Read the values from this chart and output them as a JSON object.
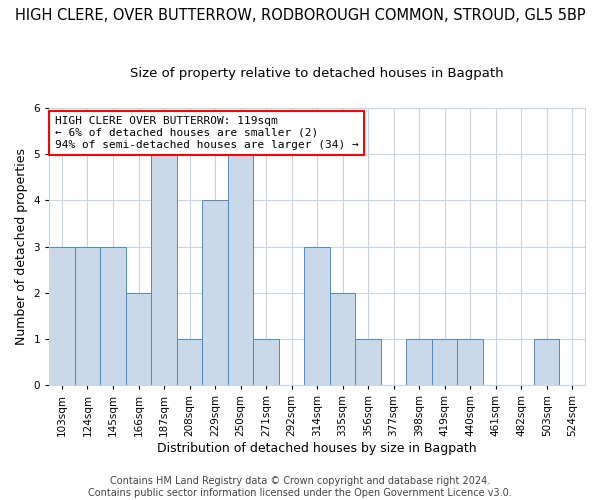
{
  "title": "HIGH CLERE, OVER BUTTERROW, RODBOROUGH COMMON, STROUD, GL5 5BP",
  "subtitle": "Size of property relative to detached houses in Bagpath",
  "xlabel": "Distribution of detached houses by size in Bagpath",
  "ylabel": "Number of detached properties",
  "footer_line1": "Contains HM Land Registry data © Crown copyright and database right 2024.",
  "footer_line2": "Contains public sector information licensed under the Open Government Licence v3.0.",
  "annotation_line1": "HIGH CLERE OVER BUTTERROW: 119sqm",
  "annotation_line2": "← 6% of detached houses are smaller (2)",
  "annotation_line3": "94% of semi-detached houses are larger (34) →",
  "bar_fill_color": "#c9d9ea",
  "bar_edge_color": "#5588bb",
  "categories": [
    "103sqm",
    "124sqm",
    "145sqm",
    "166sqm",
    "187sqm",
    "208sqm",
    "229sqm",
    "250sqm",
    "271sqm",
    "292sqm",
    "314sqm",
    "335sqm",
    "356sqm",
    "377sqm",
    "398sqm",
    "419sqm",
    "440sqm",
    "461sqm",
    "482sqm",
    "503sqm",
    "524sqm"
  ],
  "values": [
    3,
    3,
    3,
    2,
    5,
    1,
    4,
    5,
    1,
    0,
    3,
    2,
    1,
    0,
    1,
    1,
    1,
    0,
    0,
    1,
    0
  ],
  "ylim": [
    0,
    6
  ],
  "yticks": [
    0,
    1,
    2,
    3,
    4,
    5,
    6
  ],
  "background_color": "#ffffff",
  "plot_bg_color": "#ffffff",
  "grid_color": "#c8d4e0",
  "title_fontsize": 10.5,
  "subtitle_fontsize": 9.5,
  "axis_label_fontsize": 9,
  "tick_fontsize": 7.5,
  "footer_fontsize": 7,
  "annotation_fontsize": 8
}
